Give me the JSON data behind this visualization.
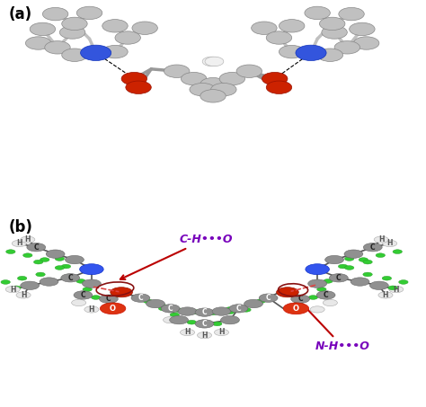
{
  "figure_size": [
    4.74,
    4.53
  ],
  "dpi": 100,
  "background_color": "#ffffff",
  "panel_a_label": "(a)",
  "panel_b_label": "(b)",
  "annotation_1": "C-H•••O",
  "annotation_2": "N-H•••O",
  "annotation_1_color": "#7700bb",
  "annotation_2_color": "#7700bb",
  "arrow_color": "#bb0000",
  "circle_color": "#881111",
  "panel_label_fontsize": 12,
  "annotation_fontsize": 9,
  "panel_split": 0.49
}
